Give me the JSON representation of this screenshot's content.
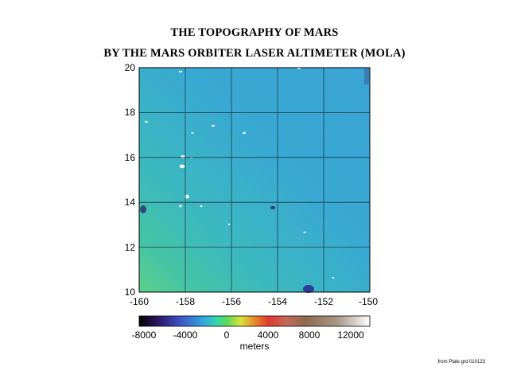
{
  "titles": {
    "line1": "THE TOPOGRAPHY OF MARS",
    "line2": "BY THE MARS ORBITER LASER ALTIMETER (MOLA)"
  },
  "map": {
    "x_ticks": [
      "-160",
      "-158",
      "-156",
      "-154",
      "-152",
      "-150"
    ],
    "y_ticks": [
      "20",
      "18",
      "16",
      "14",
      "12",
      "10"
    ],
    "lon_range": [
      -160,
      -150
    ],
    "lat_range": [
      10,
      20
    ],
    "grid": true
  },
  "colorbar": {
    "tick_labels": [
      "-8000",
      "-4000",
      "0",
      "4000",
      "8000",
      "12000"
    ],
    "unit_label": "meters",
    "range": [
      -8000,
      14000
    ],
    "colors": [
      "#000000",
      "#2b1560",
      "#3e55c8",
      "#31a8de",
      "#38d8a8",
      "#5ad85a",
      "#d8e23a",
      "#e88a2e",
      "#e03a2e",
      "#c26a5a",
      "#8e6a4e",
      "#a89888",
      "#ffffff"
    ]
  },
  "credit": "from Plate grd 010123"
}
